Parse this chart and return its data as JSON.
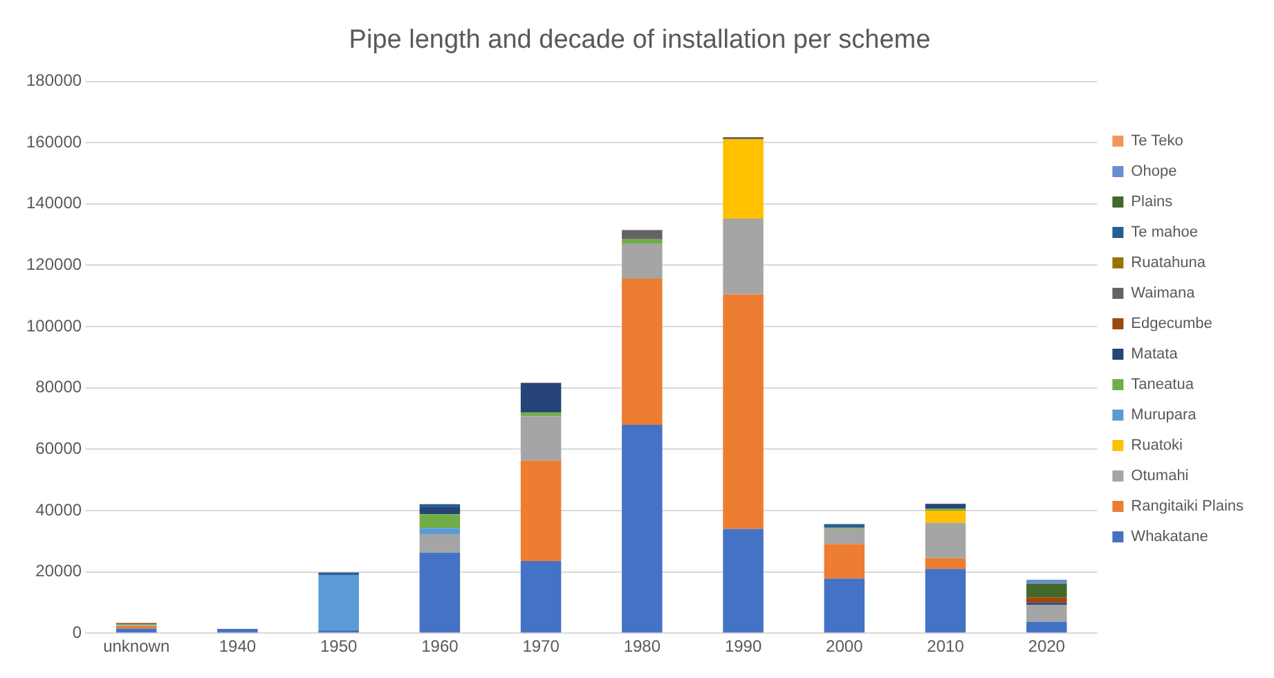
{
  "chart_data": {
    "type": "bar",
    "stacked": true,
    "title": "Pipe length and decade of installation per scheme",
    "categories": [
      "unknown",
      "1940",
      "1950",
      "1960",
      "1970",
      "1980",
      "1990",
      "2000",
      "2010",
      "2020"
    ],
    "ylim": [
      0,
      180000
    ],
    "yticks": [
      0,
      20000,
      40000,
      60000,
      80000,
      100000,
      120000,
      140000,
      160000,
      180000
    ],
    "grid": "y",
    "legend": "right",
    "series": [
      {
        "name": "Whakatane",
        "color": "#4472c4",
        "values": [
          1500,
          1400,
          1000,
          26300,
          23500,
          68000,
          34000,
          17800,
          21000,
          3700
        ]
      },
      {
        "name": "Rangitaiki Plains",
        "color": "#ed7d31",
        "values": [
          800,
          null,
          null,
          null,
          32800,
          47600,
          76500,
          11300,
          3500,
          null
        ]
      },
      {
        "name": "Otumahi",
        "color": "#a5a5a5",
        "values": [
          400,
          null,
          null,
          6000,
          14500,
          11500,
          24700,
          4900,
          11500,
          5500
        ]
      },
      {
        "name": "Ruatoki",
        "color": "#ffc000",
        "values": [
          null,
          null,
          null,
          null,
          null,
          null,
          26000,
          null,
          4000,
          null
        ]
      },
      {
        "name": "Murupara",
        "color": "#5b9bd5",
        "values": [
          null,
          null,
          18000,
          2000,
          null,
          null,
          null,
          null,
          null,
          null
        ]
      },
      {
        "name": "Taneatua",
        "color": "#70ad47",
        "values": [
          300,
          null,
          null,
          4500,
          1200,
          1400,
          null,
          400,
          600,
          null
        ]
      },
      {
        "name": "Matata",
        "color": "#264478",
        "values": [
          null,
          null,
          null,
          2500,
          9500,
          null,
          null,
          null,
          1600,
          700
        ]
      },
      {
        "name": "Edgecumbe",
        "color": "#9e480e",
        "values": [
          300,
          null,
          null,
          null,
          null,
          null,
          null,
          null,
          null,
          1800
        ]
      },
      {
        "name": "Waimana",
        "color": "#636363",
        "values": [
          null,
          null,
          null,
          null,
          200,
          3000,
          600,
          null,
          null,
          null
        ]
      },
      {
        "name": "Ruatahuna",
        "color": "#997300",
        "values": [
          null,
          null,
          null,
          null,
          null,
          null,
          null,
          null,
          null,
          null
        ]
      },
      {
        "name": "Te mahoe",
        "color": "#255e91",
        "values": [
          null,
          null,
          800,
          800,
          null,
          null,
          null,
          1200,
          null,
          null
        ]
      },
      {
        "name": "Plains",
        "color": "#43682b",
        "values": [
          null,
          null,
          null,
          null,
          null,
          null,
          null,
          null,
          null,
          4500
        ]
      },
      {
        "name": "Ohope",
        "color": "#698ed0",
        "values": [
          null,
          null,
          null,
          null,
          null,
          null,
          null,
          null,
          null,
          1200
        ]
      },
      {
        "name": "Te Teko",
        "color": "#f1975a",
        "values": [
          null,
          null,
          null,
          null,
          null,
          null,
          null,
          null,
          null,
          null
        ]
      }
    ]
  }
}
